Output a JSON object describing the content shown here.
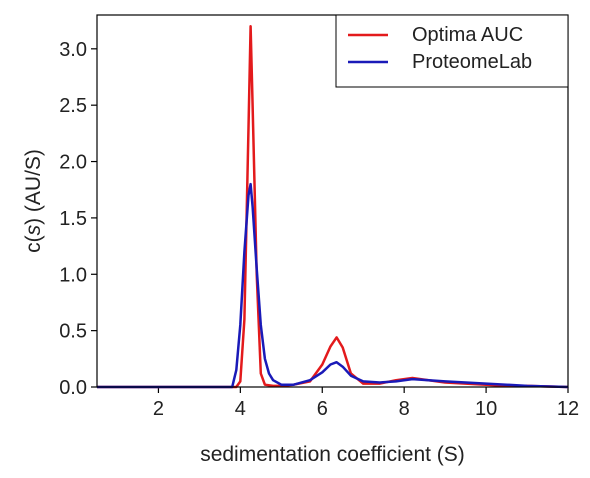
{
  "chart_data": {
    "type": "line",
    "xlabel": "sedimentation coefficient (S)",
    "ylabel": {
      "prefix": "c(",
      "italic": "s",
      "suffix": ") (AU/S)"
    },
    "xlim": [
      0.5,
      12
    ],
    "ylim": [
      0,
      3.3
    ],
    "xticks": [
      2,
      4,
      6,
      8,
      10,
      12
    ],
    "yticks": [
      0.0,
      0.5,
      1.0,
      1.5,
      2.0,
      2.5,
      3.0
    ],
    "ytick_labels": [
      "0.0",
      "0.5",
      "1.0",
      "1.5",
      "2.0",
      "2.5",
      "3.0"
    ],
    "grid": false,
    "legend_position": "top-right",
    "series": [
      {
        "name": "Optima AUC",
        "color": "#e31a1c",
        "x": [
          0.5,
          3.9,
          4.0,
          4.1,
          4.2,
          4.25,
          4.3,
          4.4,
          4.5,
          4.6,
          4.8,
          5.0,
          5.3,
          5.7,
          6.0,
          6.2,
          6.35,
          6.5,
          6.7,
          7.0,
          7.4,
          7.8,
          8.2,
          8.6,
          9.0,
          9.5,
          10.0,
          10.5,
          11.0,
          12.0
        ],
        "y": [
          0.0,
          0.0,
          0.05,
          0.6,
          2.3,
          3.2,
          2.5,
          1.0,
          0.12,
          0.02,
          0.01,
          0.01,
          0.02,
          0.05,
          0.2,
          0.36,
          0.44,
          0.35,
          0.12,
          0.03,
          0.03,
          0.06,
          0.08,
          0.06,
          0.04,
          0.03,
          0.02,
          0.01,
          0.01,
          0.0
        ]
      },
      {
        "name": "ProteomeLab",
        "color": "#1a1ab8",
        "x": [
          0.5,
          3.8,
          3.9,
          4.0,
          4.1,
          4.2,
          4.25,
          4.3,
          4.4,
          4.5,
          4.6,
          4.7,
          4.8,
          5.0,
          5.3,
          5.7,
          6.0,
          6.2,
          6.35,
          6.5,
          6.7,
          7.0,
          7.4,
          7.8,
          8.2,
          8.6,
          9.0,
          9.5,
          10.0,
          10.5,
          11.0,
          12.0
        ],
        "y": [
          0.0,
          0.0,
          0.15,
          0.55,
          1.2,
          1.7,
          1.8,
          1.6,
          1.05,
          0.55,
          0.25,
          0.12,
          0.06,
          0.02,
          0.02,
          0.06,
          0.13,
          0.2,
          0.22,
          0.18,
          0.1,
          0.05,
          0.04,
          0.05,
          0.07,
          0.06,
          0.05,
          0.04,
          0.03,
          0.02,
          0.01,
          0.0
        ]
      }
    ]
  }
}
